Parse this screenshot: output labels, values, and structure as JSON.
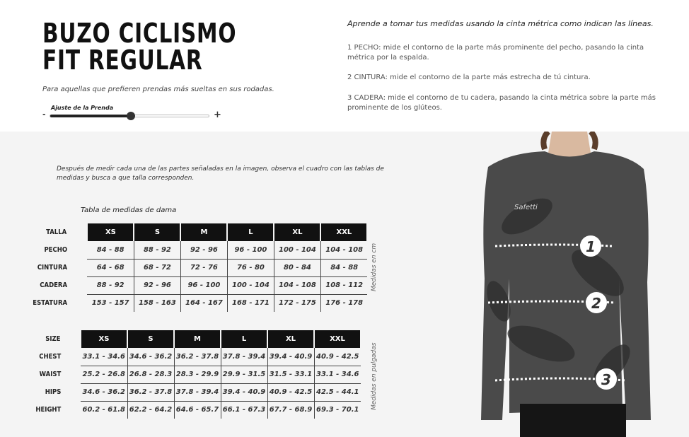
{
  "header": {
    "title_line1": "BUZO CICLISMO",
    "title_line2": "FIT REGULAR",
    "subtitle": "Para aquellas que prefieren prendas más sueltas en sus rodadas."
  },
  "slider": {
    "label": "Ajuste de la Prenda",
    "min_label": "-",
    "max_label": "+",
    "value_percent": 51
  },
  "instructions": {
    "intro": "Aprende a tomar tus medidas usando la cinta métrica como indican las líneas.",
    "steps": [
      "1 PECHO: mide el contorno de la parte más prominente del pecho, pasando la cinta métrica por la espalda.",
      "2 CINTURA: mide el contorno de la parte más estrecha de tú cintura.",
      "3 CADERA: mide el contorno de tu cadera, pasando la cinta métrica sobre la parte más prominente de los glúteos."
    ]
  },
  "note": "Después de medir cada una de las partes señaladas en la imagen, observa el cuadro con las tablas de medidas y busca a que talla corresponden.",
  "cm_table": {
    "title": "Tabla de medidas de dama",
    "unit_label": "Medidas en cm",
    "header_label": "TALLA",
    "sizes": [
      "XS",
      "S",
      "M",
      "L",
      "XL",
      "XXL"
    ],
    "rows": [
      {
        "label": "PECHO",
        "values": [
          "84 - 88",
          "88 - 92",
          "92 - 96",
          "96 - 100",
          "100 - 104",
          "104 - 108"
        ]
      },
      {
        "label": "CINTURA",
        "values": [
          "64 - 68",
          "68 - 72",
          "72 - 76",
          "76 - 80",
          "80 - 84",
          "84 - 88"
        ]
      },
      {
        "label": "CADERA",
        "values": [
          "88 - 92",
          "92 - 96",
          "96 - 100",
          "100 - 104",
          "104 - 108",
          "108 - 112"
        ]
      },
      {
        "label": "ESTATURA",
        "values": [
          "153 - 157",
          "158 - 163",
          "164 - 167",
          "168 - 171",
          "172 - 175",
          "176 - 178"
        ]
      }
    ]
  },
  "in_table": {
    "unit_label": "Medidas en pulgadas",
    "header_label": "SIZE",
    "sizes": [
      "XS",
      "S",
      "M",
      "L",
      "XL",
      "XXL"
    ],
    "rows": [
      {
        "label": "CHEST",
        "values": [
          "33.1 - 34.6",
          "34.6 - 36.2",
          "36.2 - 37.8",
          "37.8 - 39.4",
          "39.4 - 40.9",
          "40.9 - 42.5"
        ]
      },
      {
        "label": "WAIST",
        "values": [
          "25.2 - 26.8",
          "26.8 - 28.3",
          "28.3 - 29.9",
          "29.9 - 31.5",
          "31.5 - 33.1",
          "33.1 - 34.6"
        ]
      },
      {
        "label": "HIPS",
        "values": [
          "34.6 - 36.2",
          "36.2 - 37.8",
          "37.8 - 39.4",
          "39.4 - 40.9",
          "40.9 - 42.5",
          "42.5 - 44.1"
        ]
      },
      {
        "label": "HEIGHT",
        "values": [
          "60.2 - 61.8",
          "62.2 - 64.2",
          "64.6 - 65.7",
          "66.1 - 67.3",
          "67.7 - 68.9",
          "69.3 - 70.1"
        ]
      }
    ]
  },
  "photo": {
    "brand": "Safetti",
    "markers": [
      "1",
      "2",
      "3"
    ]
  }
}
